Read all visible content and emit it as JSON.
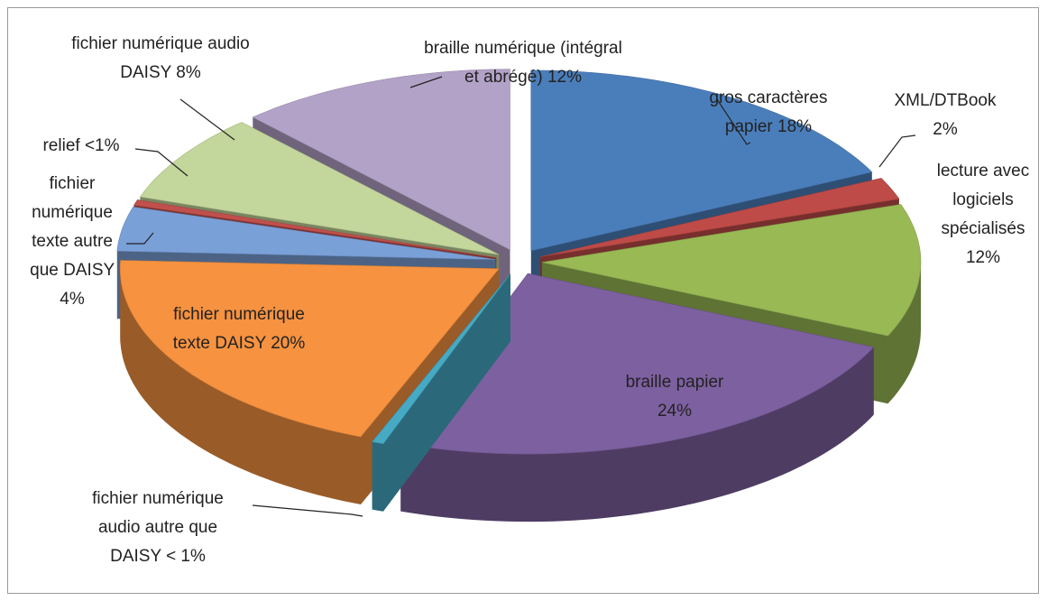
{
  "chart_data": {
    "type": "pie",
    "categories": [
      "gros caractères papier",
      "XML/DTBook",
      "lecture avec logiciels spécialisés",
      "braille papier",
      "fichier numérique audio autre que DAISY",
      "fichier numérique texte DAISY",
      "fichier numérique texte autre que DAISY",
      "relief",
      "fichier numérique audio DAISY",
      "braille numérique (intégral et abrégé)"
    ],
    "values": [
      18,
      2,
      12,
      24,
      0.5,
      20,
      4,
      0.5,
      8,
      12
    ],
    "value_labels": [
      "18%",
      "2%",
      "12%",
      "24%",
      "< 1%",
      "20%",
      "4%",
      "<1%",
      "8%",
      "12%"
    ],
    "colors": [
      "#4a7ebb",
      "#be4b48",
      "#98b954",
      "#7d60a0",
      "#46aac5",
      "#f69240",
      "#7aa0d8",
      "#c0504d",
      "#c3d69b",
      "#b3a2c7"
    ]
  }
}
